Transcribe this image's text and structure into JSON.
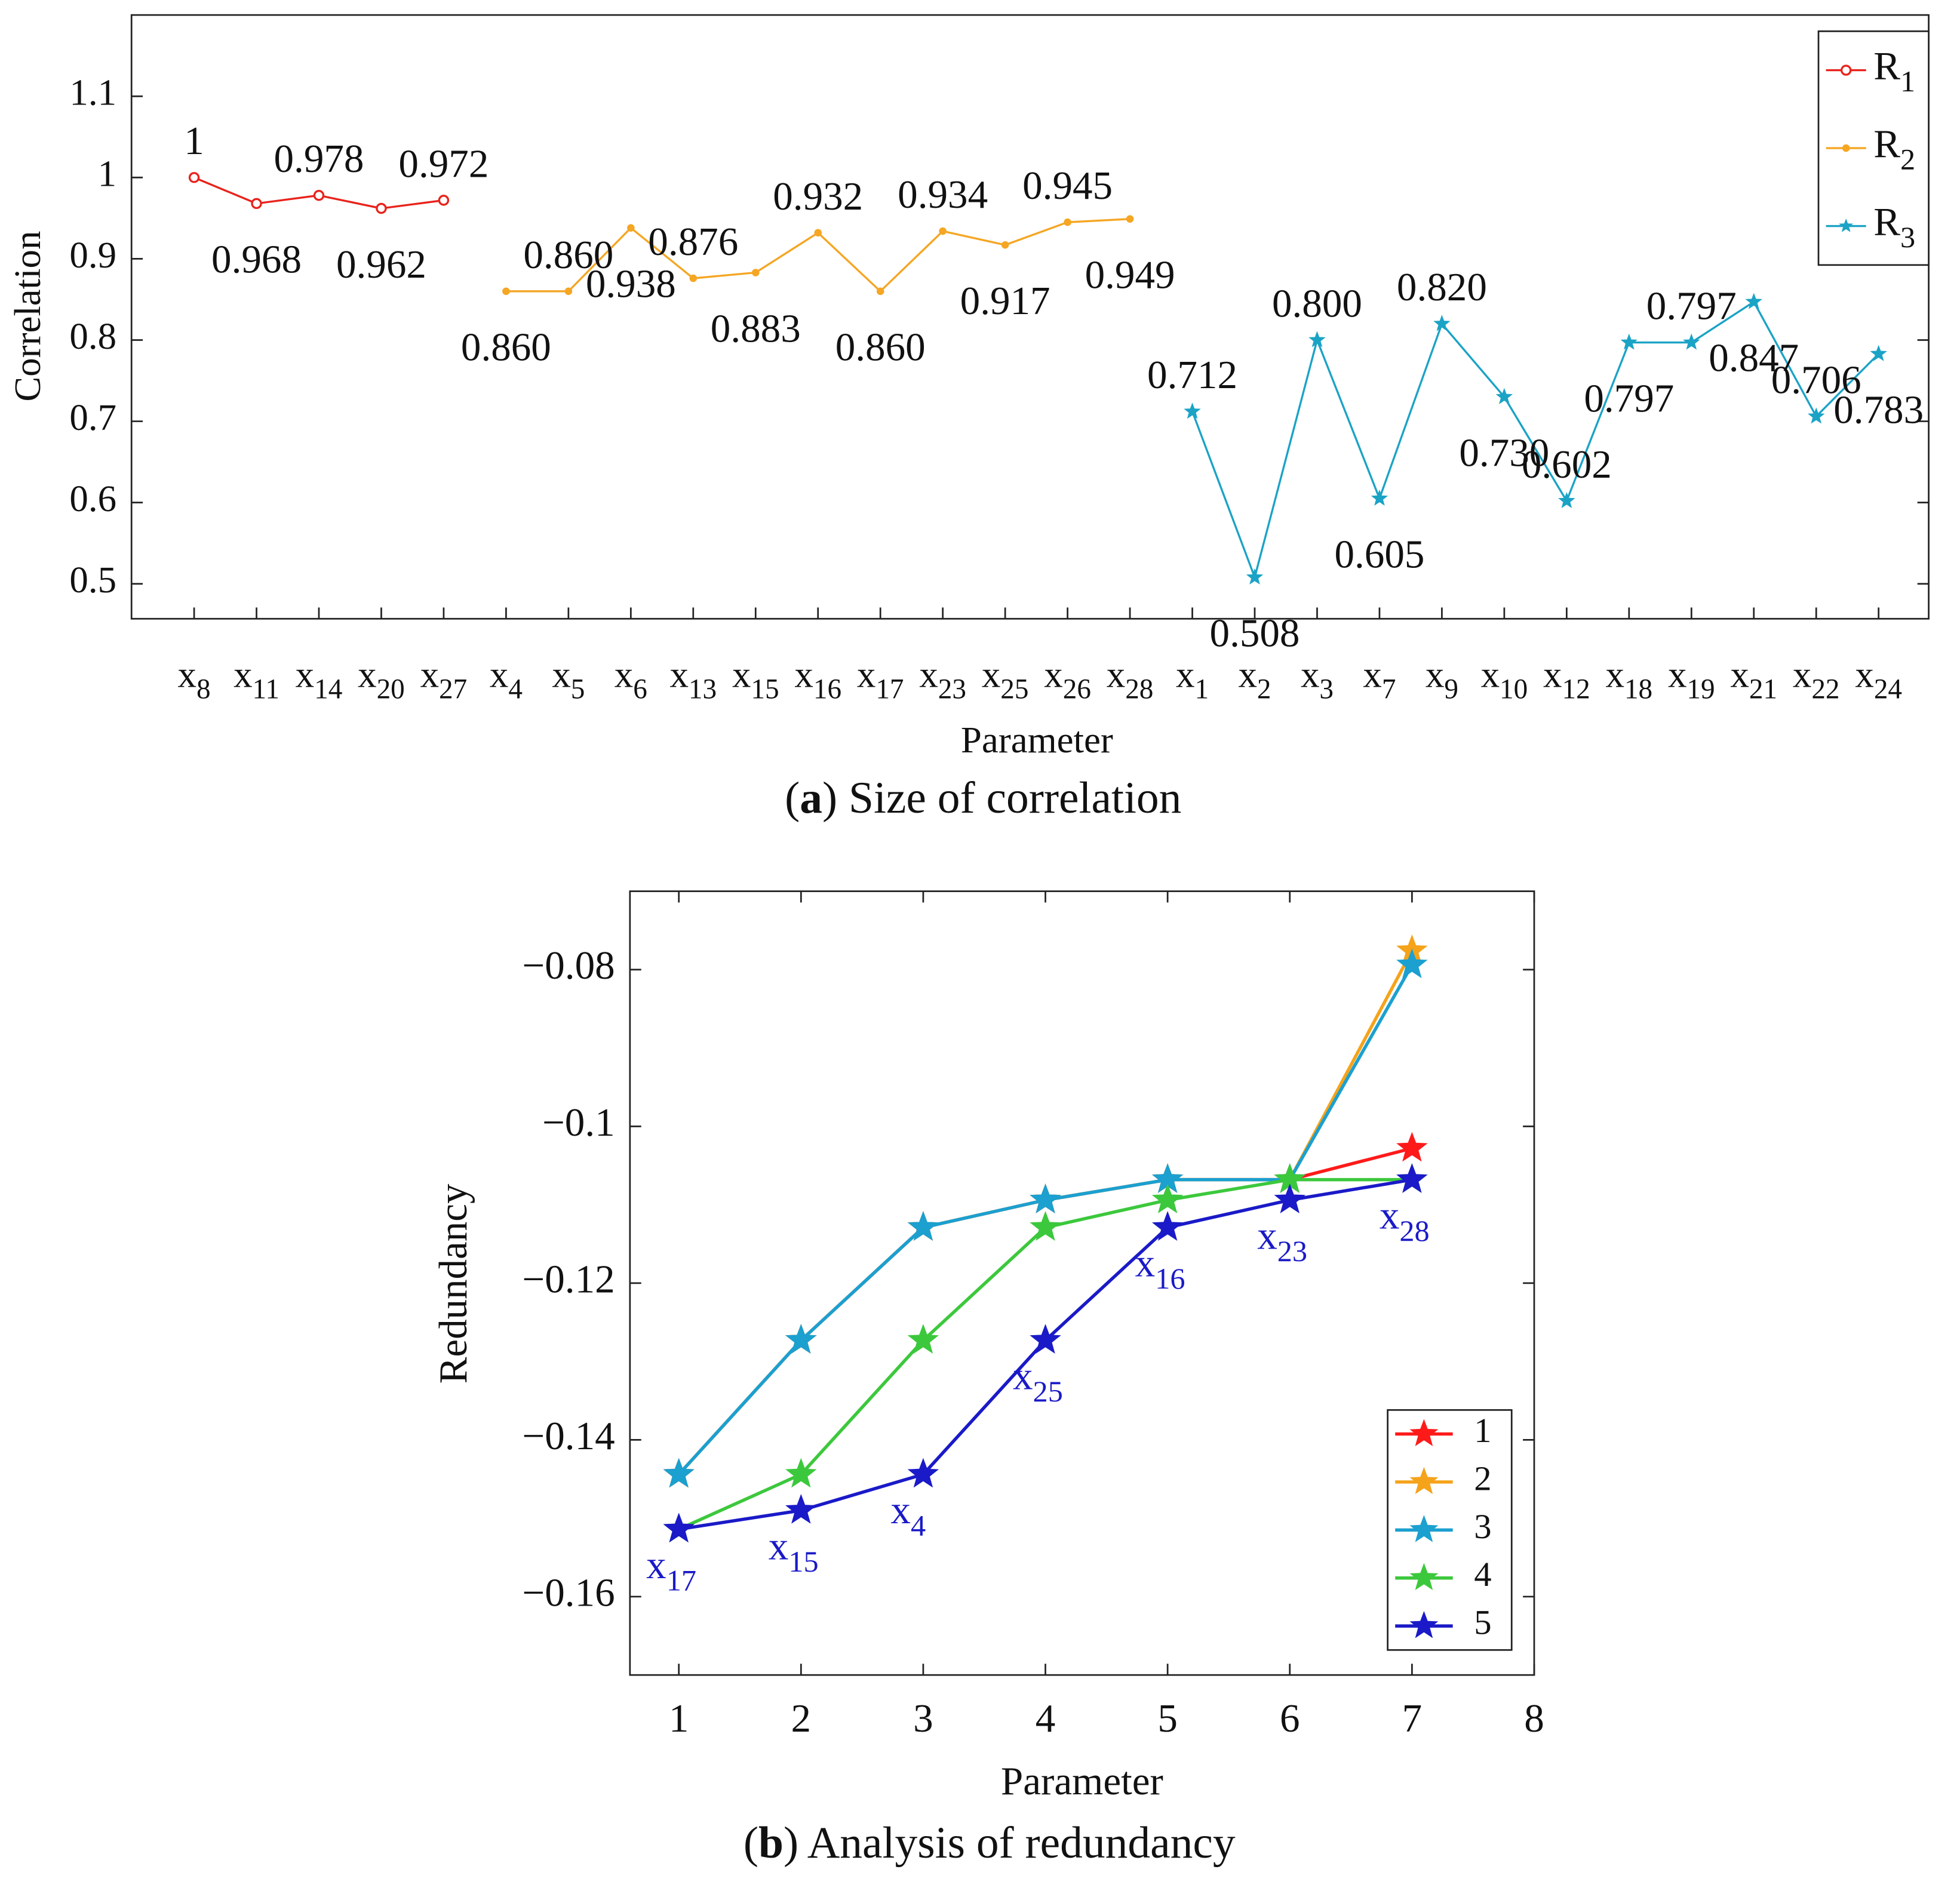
{
  "chart_data": [
    {
      "type": "line",
      "caption": "(a) Size of correlation",
      "x_label": "Parameter",
      "y_label": "Correlation",
      "categories": [
        "x8",
        "x11",
        "x14",
        "x20",
        "x27",
        "x4",
        "x5",
        "x6",
        "x13",
        "x15",
        "x16",
        "x17",
        "x23",
        "x25",
        "x26",
        "x28",
        "x1",
        "x2",
        "x3",
        "x7",
        "x9",
        "x10",
        "x12",
        "x18",
        "x19",
        "x21",
        "x22",
        "x24"
      ],
      "ylim": [
        0.457,
        1.2
      ],
      "yticks": [
        0.5,
        0.6,
        0.7,
        0.8,
        0.9,
        1,
        1.1
      ],
      "legend": "upper right",
      "series": [
        {
          "name": "R1",
          "color": "#e8231c",
          "marker": "circle",
          "values": [
            1,
            0.968,
            0.978,
            0.962,
            0.972,
            null,
            null,
            null,
            null,
            null,
            null,
            null,
            null,
            null,
            null,
            null,
            null,
            null,
            null,
            null,
            null,
            null,
            null,
            null,
            null,
            null,
            null,
            null
          ],
          "value_labels": [
            "1",
            "0.968",
            "0.978",
            "0.962",
            "0.972",
            null,
            null,
            null,
            null,
            null,
            null,
            null,
            null,
            null,
            null,
            null,
            null,
            null,
            null,
            null,
            null,
            null,
            null,
            null,
            null,
            null,
            null,
            null
          ]
        },
        {
          "name": "R2",
          "color": "#f5a623",
          "marker": "dot",
          "values": [
            null,
            null,
            null,
            null,
            null,
            0.86,
            0.86,
            0.938,
            0.876,
            0.883,
            0.932,
            0.86,
            0.934,
            0.917,
            0.945,
            0.949,
            null,
            null,
            null,
            null,
            null,
            null,
            null,
            null,
            null,
            null,
            null,
            null
          ],
          "value_labels": [
            null,
            null,
            null,
            null,
            null,
            "0.860",
            "0.860",
            "0.938",
            "0.876",
            "0.883",
            "0.932",
            "0.860",
            "0.934",
            "0.917",
            "0.945",
            "0.949",
            null,
            null,
            null,
            null,
            null,
            null,
            null,
            null,
            null,
            null,
            null,
            null
          ]
        },
        {
          "name": "R3",
          "color": "#1ba3c6",
          "marker": "star",
          "values": [
            null,
            null,
            null,
            null,
            null,
            null,
            null,
            null,
            null,
            null,
            null,
            null,
            null,
            null,
            null,
            null,
            0.712,
            0.508,
            0.8,
            0.605,
            0.82,
            0.73,
            0.602,
            0.797,
            0.797,
            0.847,
            0.706,
            0.783
          ],
          "value_labels": [
            null,
            null,
            null,
            null,
            null,
            null,
            null,
            null,
            null,
            null,
            null,
            null,
            null,
            null,
            null,
            null,
            "0.712",
            "0.508",
            "0.800",
            "0.605",
            "0.820",
            "0.730",
            "0.602",
            "0.797",
            "0.797",
            "0.847",
            "0.706",
            "0.783"
          ]
        }
      ]
    },
    {
      "type": "line",
      "caption": "(b) Analysis of redundancy",
      "x_label": "Parameter",
      "y_label": "Redundancy",
      "x": [
        1,
        2,
        3,
        4,
        5,
        6,
        7
      ],
      "xlim": [
        0.6,
        8
      ],
      "xticks": [
        1,
        2,
        3,
        4,
        5,
        6,
        7,
        8
      ],
      "ylim": [
        -0.17,
        -0.07
      ],
      "yticks": [
        {
          "value": -0.08,
          "label": "−0.08"
        },
        {
          "value": -0.1,
          "label": "−0.1"
        },
        {
          "value": -0.12,
          "label": "−0.12"
        },
        {
          "value": -0.14,
          "label": "−0.14"
        },
        {
          "value": -0.16,
          "label": "−0.16"
        }
      ],
      "legend": "lower right",
      "series": [
        {
          "name": "1",
          "color": "#ff1a1a",
          "marker": "star",
          "values": [
            -0.1444,
            -0.1273,
            -0.1129,
            -0.1094,
            -0.1068,
            -0.1068,
            -0.1028
          ]
        },
        {
          "name": "2",
          "color": "#f5a31a",
          "marker": "star",
          "values": [
            -0.1444,
            -0.1273,
            -0.1129,
            -0.1094,
            -0.1068,
            -0.1068,
            -0.0776
          ]
        },
        {
          "name": "3",
          "color": "#1ba0d0",
          "marker": "star",
          "values": [
            -0.1444,
            -0.1273,
            -0.1129,
            -0.1094,
            -0.1068,
            -0.1068,
            -0.0794
          ]
        },
        {
          "name": "4",
          "color": "#3cc83c",
          "marker": "star",
          "values": [
            -0.1514,
            -0.1444,
            -0.1273,
            -0.1129,
            -0.1094,
            -0.1068,
            -0.1068
          ]
        },
        {
          "name": "5",
          "color": "#1a1ac8",
          "marker": "star",
          "values": [
            -0.1514,
            -0.149,
            -0.1444,
            -0.1273,
            -0.1129,
            -0.1094,
            -0.1068
          ],
          "point_labels": [
            "x17",
            "x15",
            "x4",
            "x25",
            "x16",
            "x23",
            "x28"
          ]
        }
      ]
    }
  ]
}
